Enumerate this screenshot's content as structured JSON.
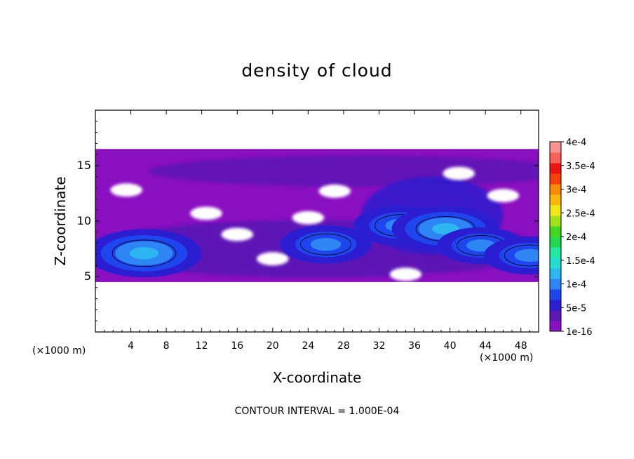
{
  "chart_data": {
    "type": "heatmap",
    "title": "density of cloud",
    "xlabel": "X-coordinate",
    "ylabel": "Z-coordinate",
    "x_unit_label": "(×1000 m)",
    "x_unit_label_right": "(×1000 m)",
    "xlim": [
      0,
      50
    ],
    "ylim": [
      0,
      20
    ],
    "x_ticks": [
      4,
      8,
      12,
      16,
      20,
      24,
      28,
      32,
      36,
      40,
      44,
      48
    ],
    "y_ticks": [
      5,
      10,
      15
    ],
    "annotation": "CONTOUR INTERVAL = 1.000E-04",
    "colorbar": {
      "labels": [
        "1e-16",
        "5e-5",
        "1e-4",
        "1.5e-4",
        "2e-4",
        "2.5e-4",
        "3e-4",
        "3.5e-4",
        "4e-4"
      ],
      "colors": [
        "#8a0fc0",
        "#5a18b4",
        "#2b1ed0",
        "#1f46ee",
        "#2e86f4",
        "#2eb6f0",
        "#26dcd0",
        "#22e8a0",
        "#22d850",
        "#44d820",
        "#a6e21a",
        "#f0e81c",
        "#f8b80c",
        "#f88a08",
        "#f8400c",
        "#ee1414",
        "#f86058",
        "#f89494"
      ]
    },
    "cloud_layer": {
      "z_bottom": 4.5,
      "z_top": 16.5,
      "gaps": [
        {
          "x": 3.5,
          "z": 12.8
        },
        {
          "x": 12.5,
          "z": 10.7
        },
        {
          "x": 16,
          "z": 8.8
        },
        {
          "x": 20,
          "z": 6.6
        },
        {
          "x": 24,
          "z": 10.3
        },
        {
          "x": 27,
          "z": 12.7
        },
        {
          "x": 35,
          "z": 5.2
        },
        {
          "x": 41,
          "z": 14.3
        },
        {
          "x": 46,
          "z": 12.3
        }
      ],
      "cores": [
        {
          "x": 5.5,
          "z": 7.1,
          "level": 0.85
        },
        {
          "x": 26,
          "z": 7.9,
          "level": 0.55
        },
        {
          "x": 34.5,
          "z": 9.6,
          "level": 0.6
        },
        {
          "x": 39.5,
          "z": 9.3,
          "level": 0.75
        },
        {
          "x": 43.5,
          "z": 7.8,
          "level": 0.5
        },
        {
          "x": 49,
          "z": 6.9,
          "level": 0.55
        }
      ]
    }
  }
}
